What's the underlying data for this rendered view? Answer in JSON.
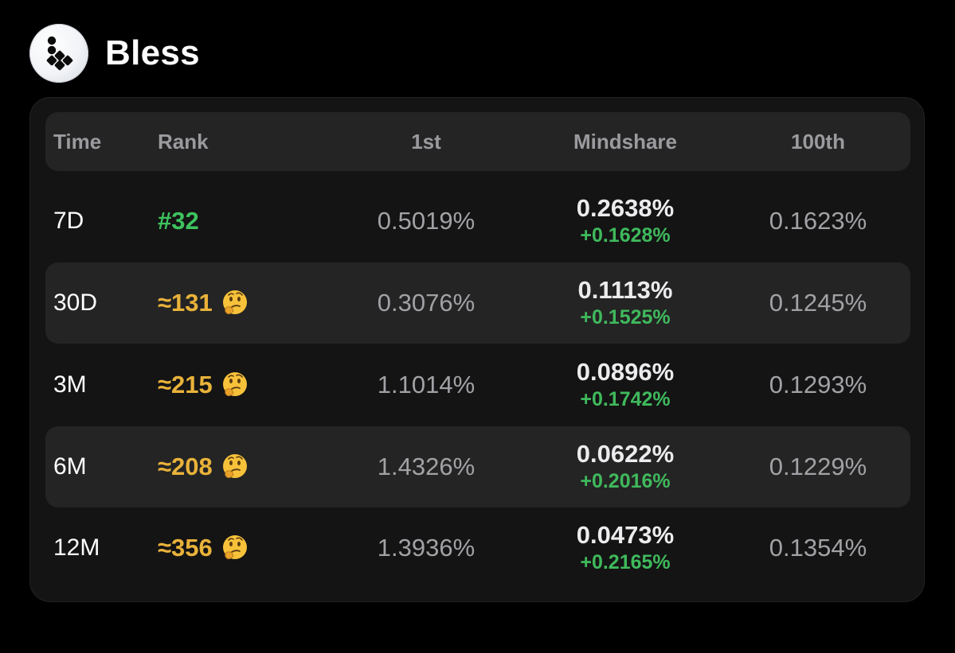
{
  "project": {
    "name": "Bless",
    "logo_icon": "bless-logo-icon"
  },
  "table": {
    "headers": {
      "time": "Time",
      "rank": "Rank",
      "first": "1st",
      "mindshare": "Mindshare",
      "hundredth": "100th"
    },
    "rows": [
      {
        "time": "7D",
        "rank": "#32",
        "rank_status": "ranked",
        "first": "0.5019%",
        "mindshare": "0.2638%",
        "mindshare_change": "+0.1628%",
        "hundredth": "0.1623%"
      },
      {
        "time": "30D",
        "rank": "≈131",
        "rank_status": "estimated",
        "rank_emoji": "thinking-face-icon",
        "first": "0.3076%",
        "mindshare": "0.1113%",
        "mindshare_change": "+0.1525%",
        "hundredth": "0.1245%"
      },
      {
        "time": "3M",
        "rank": "≈215",
        "rank_status": "estimated",
        "rank_emoji": "thinking-face-icon",
        "first": "1.1014%",
        "mindshare": "0.0896%",
        "mindshare_change": "+0.1742%",
        "hundredth": "0.1293%"
      },
      {
        "time": "6M",
        "rank": "≈208",
        "rank_status": "estimated",
        "rank_emoji": "thinking-face-icon",
        "first": "1.4326%",
        "mindshare": "0.0622%",
        "mindshare_change": "+0.2016%",
        "hundredth": "0.1229%"
      },
      {
        "time": "12M",
        "rank": "≈356",
        "rank_status": "estimated",
        "rank_emoji": "thinking-face-icon",
        "first": "1.3936%",
        "mindshare": "0.0473%",
        "mindshare_change": "+0.2165%",
        "hundredth": "0.1354%"
      }
    ]
  },
  "colors": {
    "background": "#000000",
    "card": "#141414",
    "header_row": "#242424",
    "rank_ranked": "#3ec35e",
    "rank_estimated": "#e9b23a",
    "positive_change": "#3fb95c",
    "muted_text": "#a2a2a6"
  }
}
